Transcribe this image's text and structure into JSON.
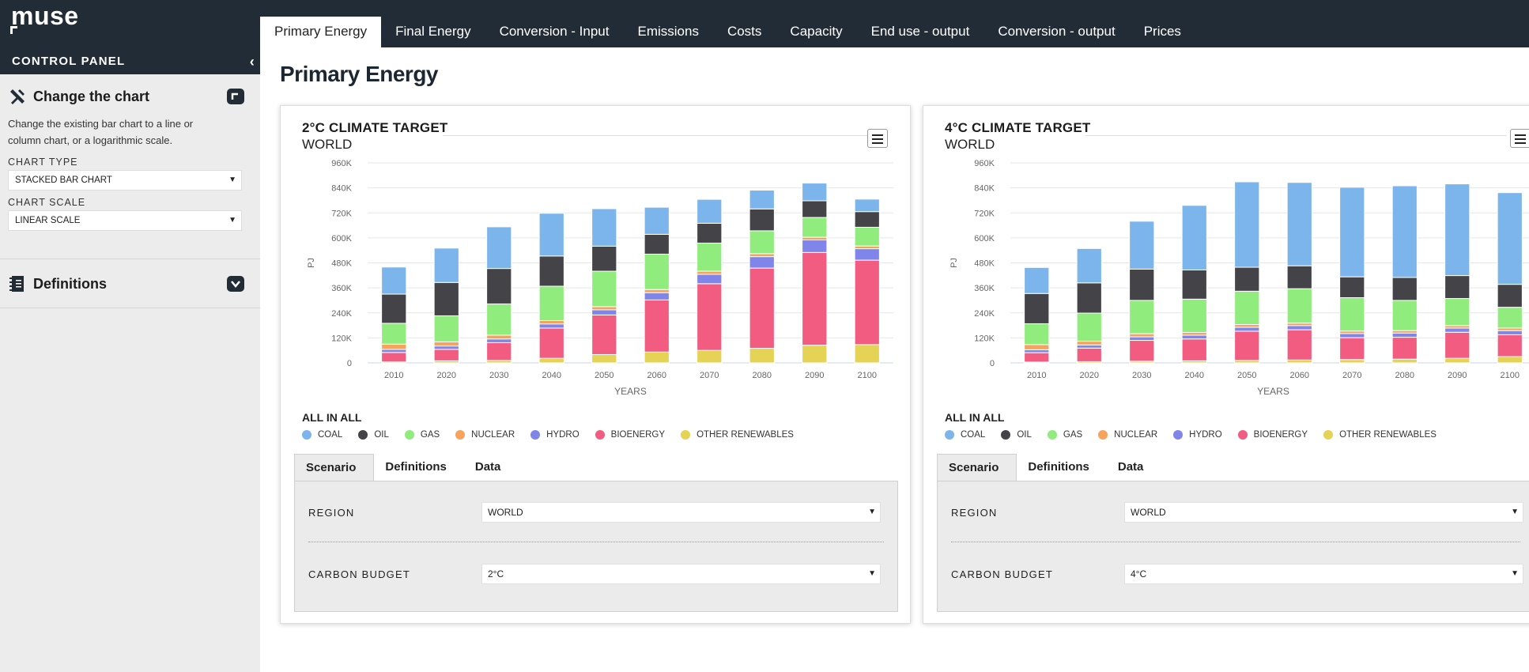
{
  "app": {
    "logo": "muse"
  },
  "sidebar": {
    "title": "CONTROL PANEL",
    "collapse_glyph": "‹",
    "change_chart": {
      "title": "Change the chart",
      "icon": "tools-icon",
      "description_line1": "Change the existing bar chart to a line or",
      "description_line2": "column chart, or a logarithmic scale.",
      "chart_type_label": "CHART TYPE",
      "chart_type_value": "STACKED BAR CHART",
      "chart_scale_label": "CHART SCALE",
      "chart_scale_value": "LINEAR SCALE"
    },
    "definitions": {
      "title": "Definitions",
      "icon": "notebook-icon"
    }
  },
  "nav": {
    "tabs": [
      "Primary Energy",
      "Final Energy",
      "Conversion - Input",
      "Emissions",
      "Costs",
      "Capacity",
      "End use - output",
      "Conversion - output",
      "Prices"
    ],
    "active": 0
  },
  "page": {
    "title": "Primary Energy"
  },
  "colors": {
    "coal": "#7cb5ec",
    "oil": "#434348",
    "gas": "#90ed7d",
    "nuclear": "#f7a35c",
    "hydro": "#8085e9",
    "bioenergy": "#f15c80",
    "other_renewables": "#e4d354",
    "dark": "#222c37"
  },
  "legend": {
    "title": "ALL IN ALL",
    "items": [
      {
        "key": "coal",
        "label": "COAL"
      },
      {
        "key": "oil",
        "label": "OIL"
      },
      {
        "key": "gas",
        "label": "GAS"
      },
      {
        "key": "nuclear",
        "label": "NUCLEAR"
      },
      {
        "key": "hydro",
        "label": "HYDRO"
      },
      {
        "key": "bioenergy",
        "label": "BIOENERGY"
      },
      {
        "key": "other_renewables",
        "label": "OTHER RENEWABLES"
      }
    ]
  },
  "panels": [
    {
      "title": "2°C CLIMATE TARGET",
      "subtitle": "WORLD",
      "tabs": [
        "Scenario",
        "Definitions",
        "Data"
      ],
      "region_label": "REGION",
      "region_value": "WORLD",
      "budget_label": "CARBON BUDGET",
      "budget_value": "2°C"
    },
    {
      "title": "4°C CLIMATE TARGET",
      "subtitle": "WORLD",
      "tabs": [
        "Scenario",
        "Definitions",
        "Data"
      ],
      "region_label": "REGION",
      "region_value": "WORLD",
      "budget_label": "CARBON BUDGET",
      "budget_value": "4°C"
    }
  ],
  "chart_data": [
    {
      "type": "bar",
      "stacked": true,
      "title": "2°C CLIMATE TARGET",
      "subtitle": "WORLD",
      "xlabel": "YEARS",
      "ylabel": "PJ",
      "ylim": [
        0,
        960000
      ],
      "yticks": [
        0,
        120000,
        240000,
        360000,
        480000,
        600000,
        720000,
        840000,
        960000
      ],
      "ytick_labels": [
        "0",
        "120K",
        "240K",
        "360K",
        "480K",
        "600K",
        "720K",
        "840K",
        "960K"
      ],
      "categories": [
        "2010",
        "2020",
        "2030",
        "2040",
        "2050",
        "2060",
        "2070",
        "2080",
        "2090",
        "2100"
      ],
      "series": [
        {
          "name": "OTHER RENEWABLES",
          "key": "other_renewables",
          "values": [
            5000,
            10000,
            12000,
            22000,
            40000,
            52000,
            60000,
            70000,
            85000,
            88000
          ]
        },
        {
          "name": "BIOENERGY",
          "key": "bioenergy",
          "values": [
            45000,
            55000,
            85000,
            145000,
            190000,
            250000,
            320000,
            385000,
            445000,
            405000
          ]
        },
        {
          "name": "HYDRO",
          "key": "hydro",
          "values": [
            15000,
            16000,
            18000,
            20000,
            25000,
            35000,
            45000,
            55000,
            60000,
            55000
          ]
        },
        {
          "name": "NUCLEAR",
          "key": "nuclear",
          "values": [
            25000,
            20000,
            18000,
            16000,
            15000,
            15000,
            15000,
            14000,
            13000,
            13000
          ]
        },
        {
          "name": "GAS",
          "key": "gas",
          "values": [
            100000,
            125000,
            150000,
            165000,
            170000,
            170000,
            135000,
            110000,
            95000,
            90000
          ]
        },
        {
          "name": "OIL",
          "key": "oil",
          "values": [
            140000,
            160000,
            170000,
            145000,
            120000,
            95000,
            95000,
            105000,
            80000,
            75000
          ]
        },
        {
          "name": "COAL",
          "key": "coal",
          "values": [
            130000,
            165000,
            200000,
            205000,
            180000,
            130000,
            115000,
            90000,
            85000,
            60000
          ]
        }
      ]
    },
    {
      "type": "bar",
      "stacked": true,
      "title": "4°C CLIMATE TARGET",
      "subtitle": "WORLD",
      "xlabel": "YEARS",
      "ylabel": "PJ",
      "ylim": [
        0,
        960000
      ],
      "yticks": [
        0,
        120000,
        240000,
        360000,
        480000,
        600000,
        720000,
        840000,
        960000
      ],
      "ytick_labels": [
        "0",
        "120K",
        "240K",
        "360K",
        "480K",
        "600K",
        "720K",
        "840K",
        "960K"
      ],
      "categories": [
        "2010",
        "2020",
        "2030",
        "2040",
        "2050",
        "2060",
        "2070",
        "2080",
        "2090",
        "2100"
      ],
      "series": [
        {
          "name": "OTHER RENEWABLES",
          "key": "other_renewables",
          "values": [
            4000,
            6000,
            8000,
            10000,
            12000,
            14000,
            16000,
            18000,
            22000,
            30000
          ]
        },
        {
          "name": "BIOENERGY",
          "key": "bioenergy",
          "values": [
            45000,
            65000,
            100000,
            105000,
            140000,
            145000,
            105000,
            105000,
            125000,
            105000
          ]
        },
        {
          "name": "HYDRO",
          "key": "hydro",
          "values": [
            14000,
            15000,
            17000,
            18000,
            19000,
            20000,
            20000,
            20000,
            20000,
            20000
          ]
        },
        {
          "name": "NUCLEAR",
          "key": "nuclear",
          "values": [
            25000,
            18000,
            15000,
            13000,
            13000,
            12000,
            12000,
            12000,
            12000,
            12000
          ]
        },
        {
          "name": "GAS",
          "key": "gas",
          "values": [
            100000,
            135000,
            160000,
            160000,
            160000,
            165000,
            160000,
            145000,
            130000,
            100000
          ]
        },
        {
          "name": "OIL",
          "key": "oil",
          "values": [
            145000,
            145000,
            150000,
            140000,
            115000,
            110000,
            100000,
            110000,
            110000,
            110000
          ]
        },
        {
          "name": "COAL",
          "key": "coal",
          "values": [
            125000,
            165000,
            230000,
            310000,
            410000,
            400000,
            430000,
            440000,
            440000,
            440000
          ]
        }
      ]
    }
  ]
}
